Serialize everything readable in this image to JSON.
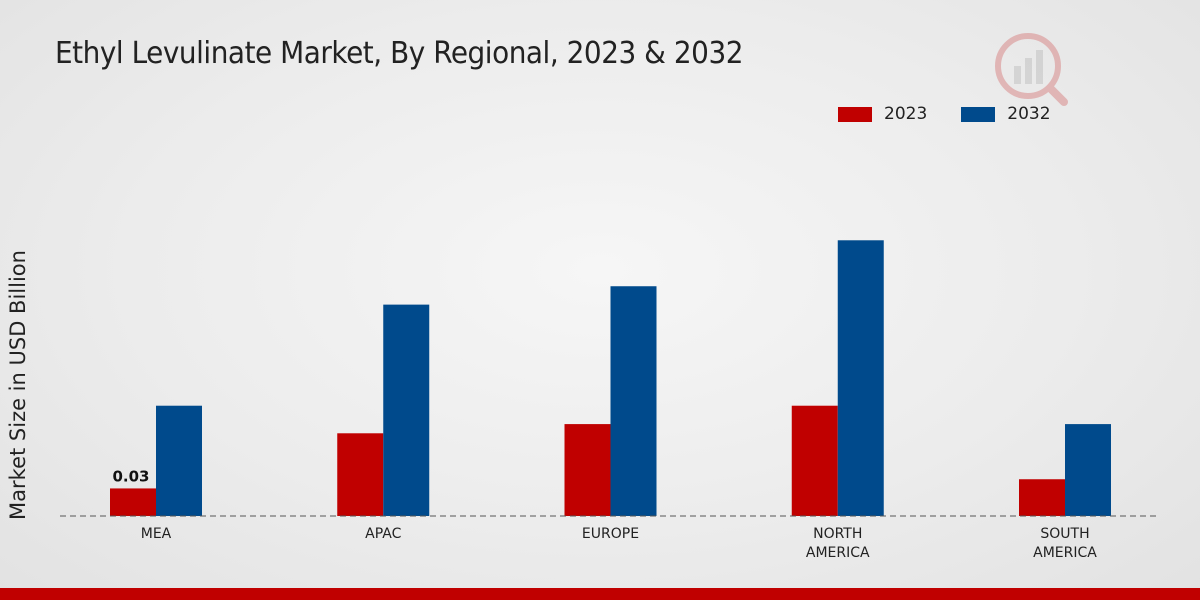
{
  "chart_data": {
    "type": "bar",
    "title": "Ethyl Levulinate Market, By Regional, 2023 & 2032",
    "xlabel": "",
    "ylabel": "Market Size in USD Billion",
    "categories": [
      [
        "MEA"
      ],
      [
        "APAC"
      ],
      [
        "EUROPE"
      ],
      [
        "NORTH",
        "AMERICA"
      ],
      [
        "SOUTH",
        "AMERICA"
      ]
    ],
    "series": [
      {
        "name": "2023",
        "color": "#c00000",
        "values": [
          0.03,
          0.09,
          0.1,
          0.12,
          0.04
        ]
      },
      {
        "name": "2032",
        "color": "#004a8c",
        "values": [
          0.12,
          0.23,
          0.25,
          0.3,
          0.1
        ]
      }
    ],
    "data_labels": [
      {
        "series": 0,
        "index": 0,
        "text": "0.03"
      }
    ],
    "ylim": [
      0,
      0.42
    ],
    "grid": false,
    "baseline": "dashed",
    "legend": "top-right"
  }
}
